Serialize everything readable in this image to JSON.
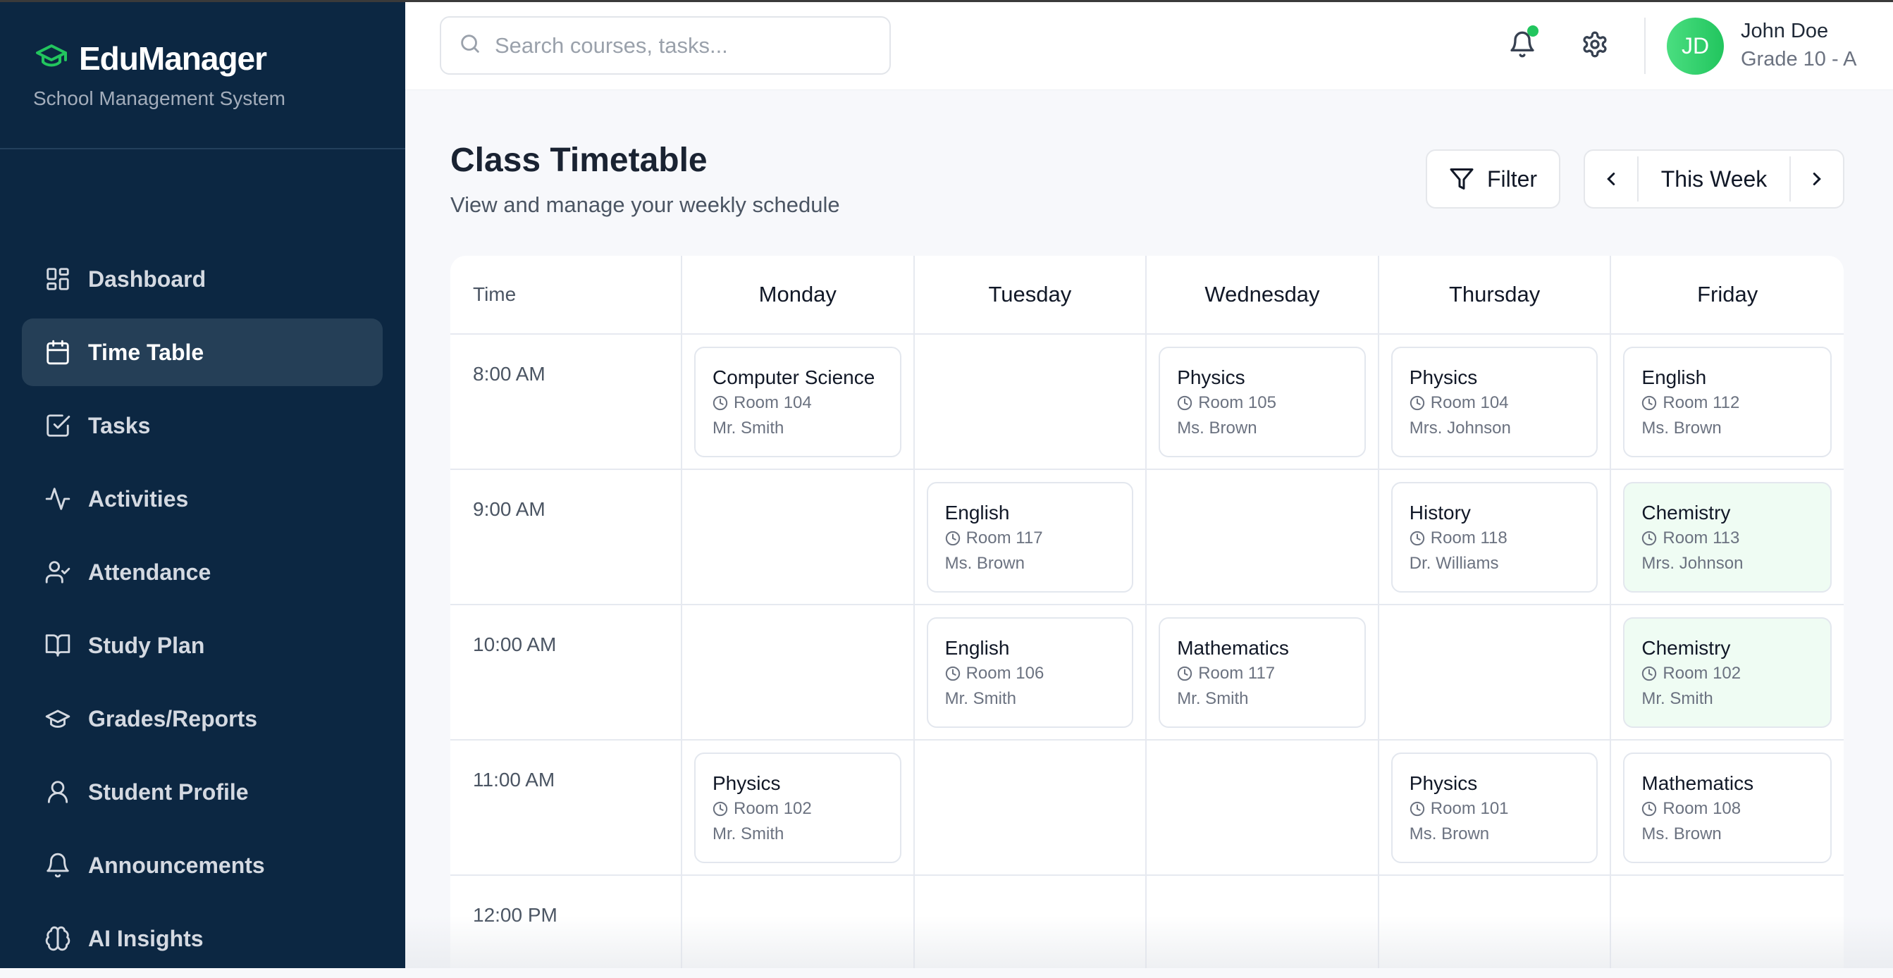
{
  "app": {
    "name": "EduManager",
    "subtitle": "School Management System",
    "accent": "#22c55e",
    "sidebar_bg": "#0c2742"
  },
  "sidebar": {
    "items": [
      {
        "label": "Dashboard",
        "icon": "dashboard-icon"
      },
      {
        "label": "Time Table",
        "icon": "calendar-icon",
        "active": true
      },
      {
        "label": "Tasks",
        "icon": "checkbox-icon"
      },
      {
        "label": "Activities",
        "icon": "activity-icon"
      },
      {
        "label": "Attendance",
        "icon": "user-check-icon"
      },
      {
        "label": "Study Plan",
        "icon": "book-open-icon"
      },
      {
        "label": "Grades/Reports",
        "icon": "graduation-cap-icon"
      },
      {
        "label": "Student Profile",
        "icon": "user-icon"
      },
      {
        "label": "Announcements",
        "icon": "bell-icon"
      },
      {
        "label": "AI Insights",
        "icon": "brain-icon"
      }
    ]
  },
  "header": {
    "search_placeholder": "Search courses, tasks...",
    "user": {
      "initials": "JD",
      "name": "John Doe",
      "grade": "Grade 10 - A"
    },
    "has_notification": true
  },
  "page": {
    "title": "Class Timetable",
    "subtitle": "View and manage your weekly schedule",
    "filter_label": "Filter",
    "week_label": "This Week"
  },
  "timetable": {
    "time_header": "Time",
    "days": [
      "Monday",
      "Tuesday",
      "Wednesday",
      "Thursday",
      "Friday"
    ],
    "rows": [
      {
        "time": "8:00 AM",
        "slots": [
          {
            "subject": "Computer Science",
            "room": "Room 104",
            "teacher": "Mr. Smith"
          },
          null,
          {
            "subject": "Physics",
            "room": "Room 105",
            "teacher": "Ms. Brown"
          },
          {
            "subject": "Physics",
            "room": "Room 104",
            "teacher": "Mrs. Johnson"
          },
          {
            "subject": "English",
            "room": "Room 112",
            "teacher": "Ms. Brown"
          }
        ]
      },
      {
        "time": "9:00 AM",
        "slots": [
          null,
          {
            "subject": "English",
            "room": "Room 117",
            "teacher": "Ms. Brown"
          },
          null,
          {
            "subject": "History",
            "room": "Room 118",
            "teacher": "Dr. Williams"
          },
          {
            "subject": "Chemistry",
            "room": "Room 113",
            "teacher": "Mrs. Johnson",
            "highlight": true
          }
        ]
      },
      {
        "time": "10:00 AM",
        "slots": [
          null,
          {
            "subject": "English",
            "room": "Room 106",
            "teacher": "Mr. Smith"
          },
          {
            "subject": "Mathematics",
            "room": "Room 117",
            "teacher": "Mr. Smith"
          },
          null,
          {
            "subject": "Chemistry",
            "room": "Room 102",
            "teacher": "Mr. Smith",
            "highlight": true
          }
        ]
      },
      {
        "time": "11:00 AM",
        "slots": [
          {
            "subject": "Physics",
            "room": "Room 102",
            "teacher": "Mr. Smith"
          },
          null,
          null,
          {
            "subject": "Physics",
            "room": "Room 101",
            "teacher": "Ms. Brown"
          },
          {
            "subject": "Mathematics",
            "room": "Room 108",
            "teacher": "Ms. Brown"
          }
        ]
      },
      {
        "time": "12:00 PM",
        "slots": [
          null,
          null,
          null,
          null,
          null
        ]
      }
    ]
  }
}
